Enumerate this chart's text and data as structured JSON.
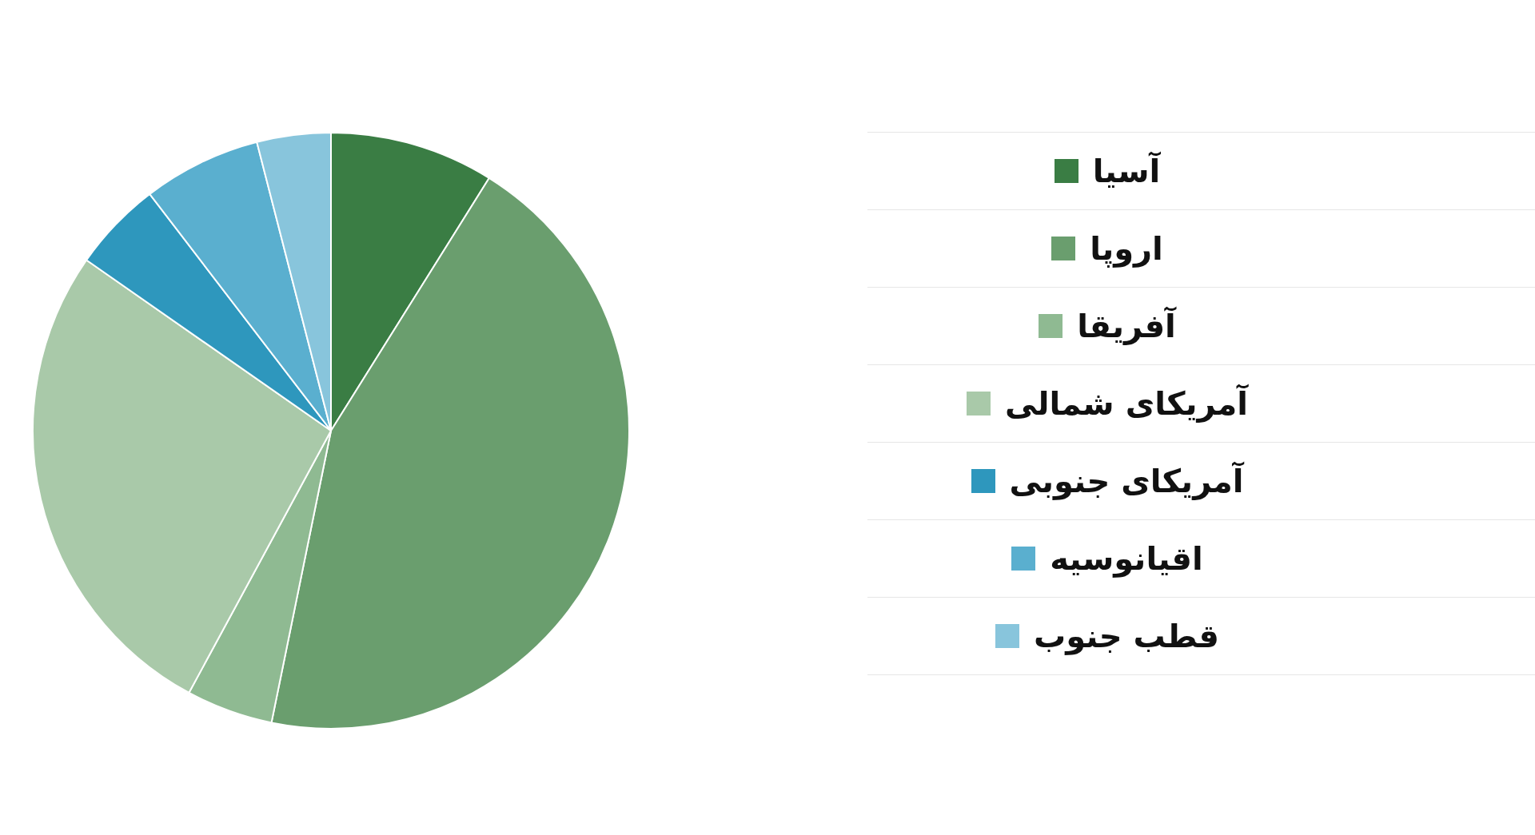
{
  "chart_data": {
    "type": "pie",
    "categories": [
      "آسیا",
      "اروپا",
      "آفریقا",
      "آمریکای شمالی",
      "آمریکای جنوبی",
      "اقیانوسیه",
      "قطب جنوب"
    ],
    "values": [
      8.9,
      44.3,
      4.7,
      26.8,
      4.9,
      6.4,
      4.0
    ],
    "colors": [
      "#3a7d44",
      "#6a9e6e",
      "#8fba92",
      "#a9c9a9",
      "#2e97bd",
      "#5aafcf",
      "#88c5dc"
    ],
    "legend": "right"
  }
}
